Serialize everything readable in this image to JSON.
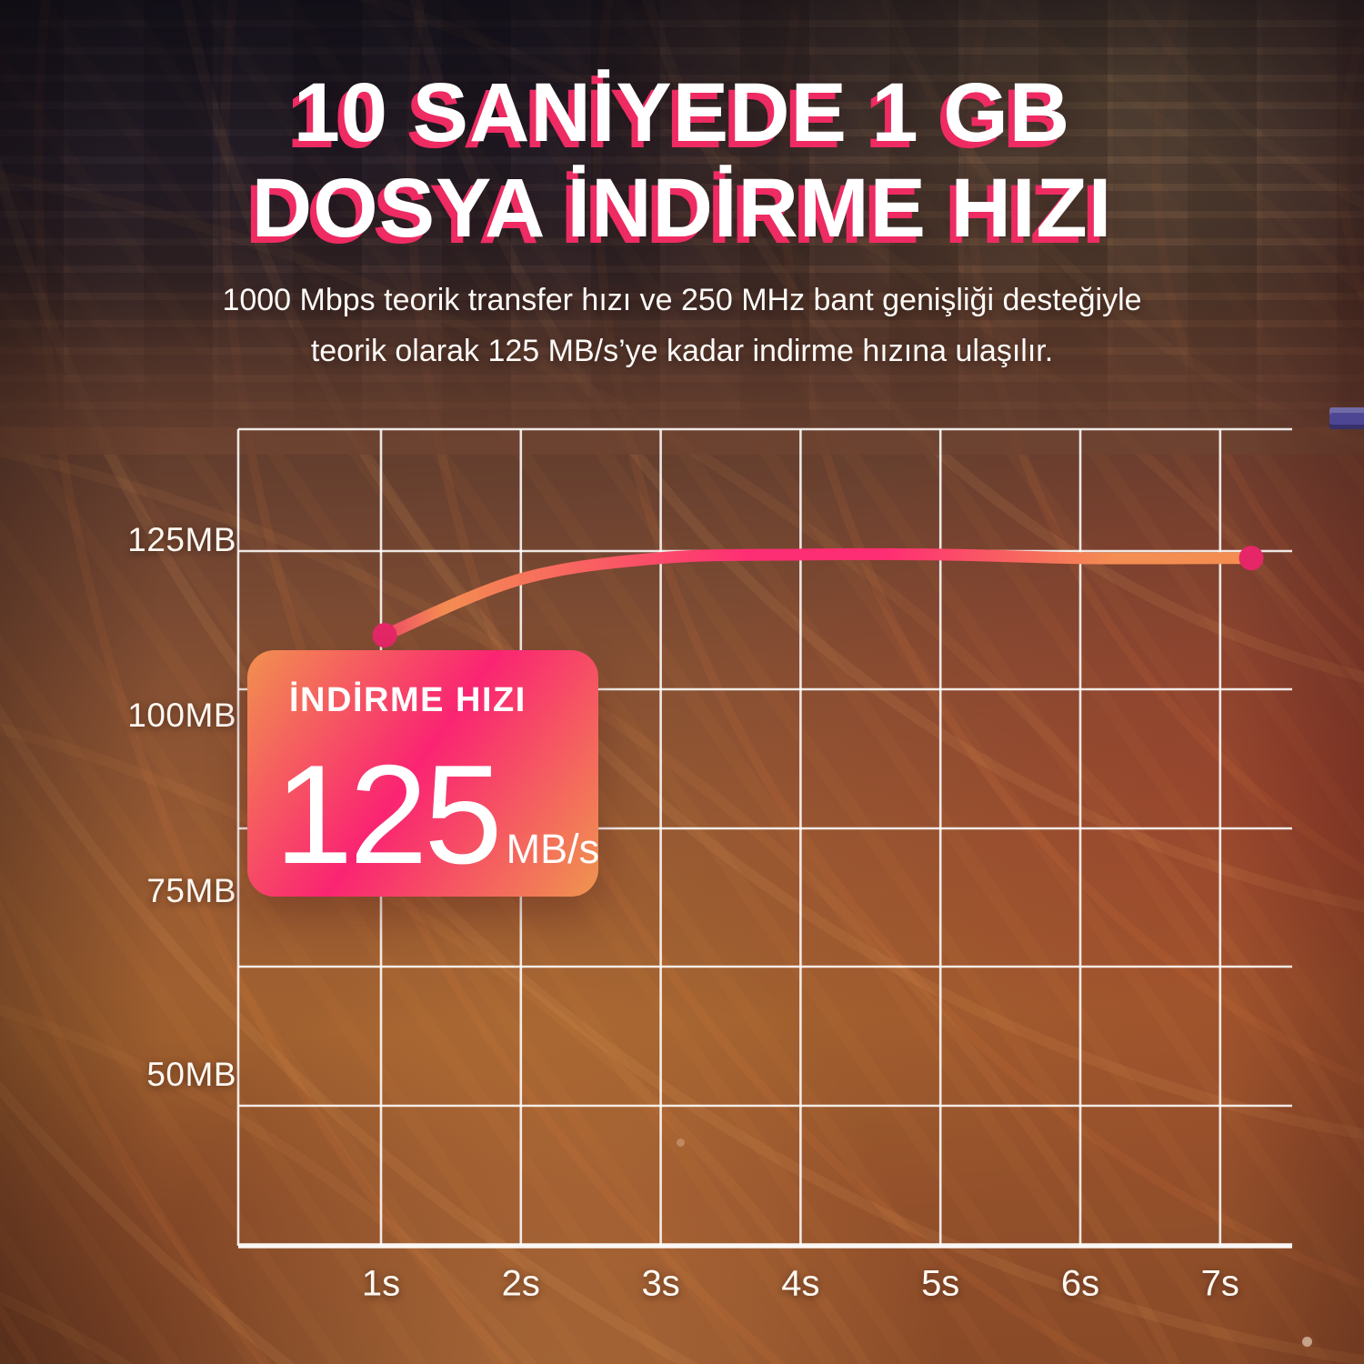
{
  "title": {
    "line1": "10 SANİYEDE 1 GB",
    "line2": "DOSYA İNDİRME HIZI"
  },
  "subtitle": {
    "line1": "1000 Mbps teorik transfer hızı ve 250 MHz bant genişliği desteğiyle",
    "line2": "teorik olarak 125 MB/s’ye kadar indirme hızına ulaşılır."
  },
  "speed_badge": {
    "label": "İNDİRME HIZI",
    "value": "125",
    "unit": "MB/s"
  },
  "chart_data": {
    "type": "line",
    "title": "",
    "x": [
      "1s",
      "2s",
      "3s",
      "4s",
      "5s",
      "6s",
      "7s"
    ],
    "y_tick_labels": [
      "125MB",
      "100MB",
      "75MB",
      "50MB"
    ],
    "series": [
      {
        "name": "İndirme Hızı (MB/s)",
        "values": [
          113,
          121,
          124,
          124.5,
          124.5,
          124,
          124
        ]
      }
    ],
    "ylim": [
      25,
      140
    ],
    "grid": true,
    "legend": false,
    "annotations": [
      "start and end data points marked with magenta dots",
      "İNDİRME HIZI 125 MB/s badge overlays the plot"
    ]
  },
  "colors": {
    "dot": "#e52767",
    "line_orange": "#f48d51",
    "line_pink": "#fe2e74",
    "badge_orange": "#f1914f",
    "badge_pink": "#fa2472",
    "title_shadow": "#ee2b62",
    "grid": "#ffffff"
  }
}
